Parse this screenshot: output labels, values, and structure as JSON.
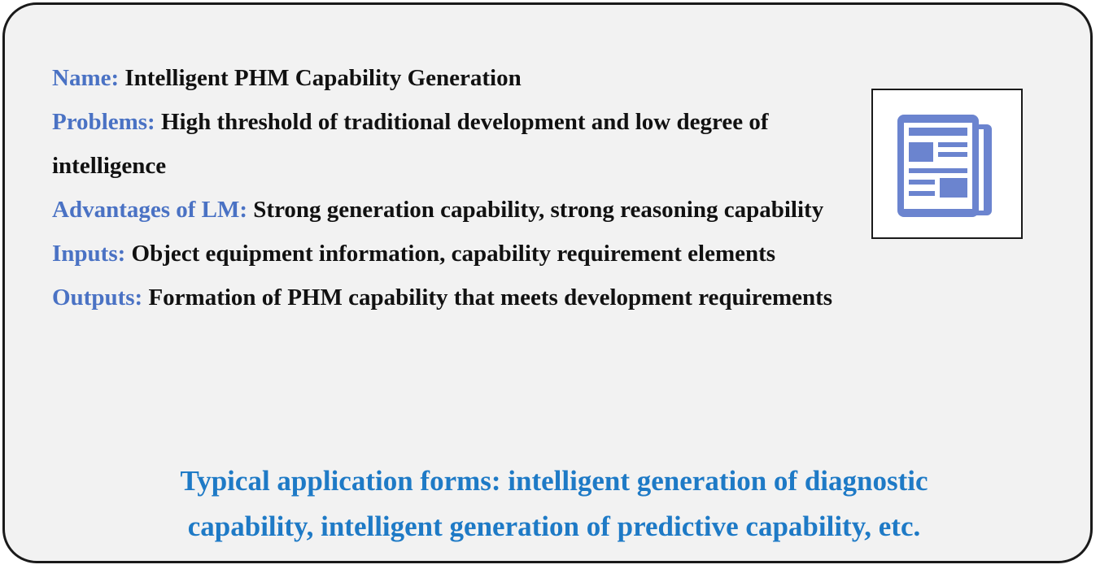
{
  "fields": [
    {
      "label": "Name:",
      "value": "Intelligent PHM Capability Generation"
    },
    {
      "label": "Problems:",
      "value": "High threshold of traditional development and low degree of intelligence"
    },
    {
      "label": "Advantages of LM:",
      "value": "Strong generation capability, strong reasoning capability"
    },
    {
      "label": "Inputs:",
      "value": "Object equipment information, capability requirement elements"
    },
    {
      "label": "Outputs:",
      "value": "Formation of PHM capability that meets development requirements"
    }
  ],
  "icon": {
    "name": "newspaper-icon",
    "color": "#6b84cf"
  },
  "footer": {
    "line1": "Typical application forms: intelligent generation of diagnostic",
    "line2": "capability, intelligent generation of predictive capability, etc."
  },
  "colors": {
    "label": "#4a72c4",
    "value": "#111111",
    "footer": "#1e7ac6",
    "background": "#f2f2f2",
    "border": "#1a1a1a"
  }
}
